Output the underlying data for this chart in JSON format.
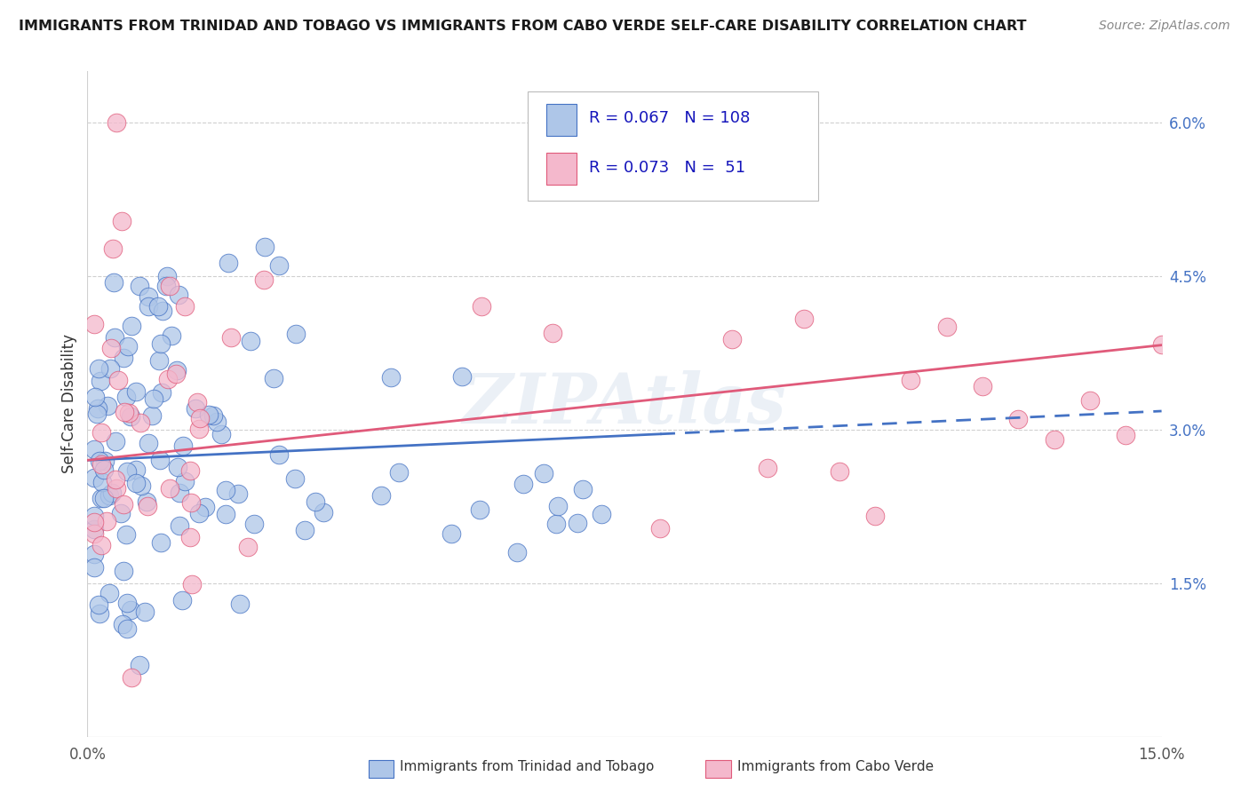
{
  "title": "IMMIGRANTS FROM TRINIDAD AND TOBAGO VS IMMIGRANTS FROM CABO VERDE SELF-CARE DISABILITY CORRELATION CHART",
  "source": "Source: ZipAtlas.com",
  "ylabel": "Self-Care Disability",
  "ytick_labels": [
    "6.0%",
    "4.5%",
    "3.0%",
    "1.5%"
  ],
  "ytick_values": [
    0.06,
    0.045,
    0.03,
    0.015
  ],
  "xlim": [
    0.0,
    0.15
  ],
  "ylim": [
    0.0,
    0.065
  ],
  "legend_label1": "Immigrants from Trinidad and Tobago",
  "legend_label2": "Immigrants from Cabo Verde",
  "r1": 0.067,
  "n1": 108,
  "r2": 0.073,
  "n2": 51,
  "color1": "#aec6e8",
  "color2": "#f4b8cc",
  "line1_color": "#4472c4",
  "line2_color": "#e05a7a",
  "watermark": "ZIPAtlas",
  "line1_solid_end": 0.08,
  "line1_y0": 0.027,
  "line1_slope": 0.032,
  "line2_y0": 0.027,
  "line2_slope": 0.075
}
